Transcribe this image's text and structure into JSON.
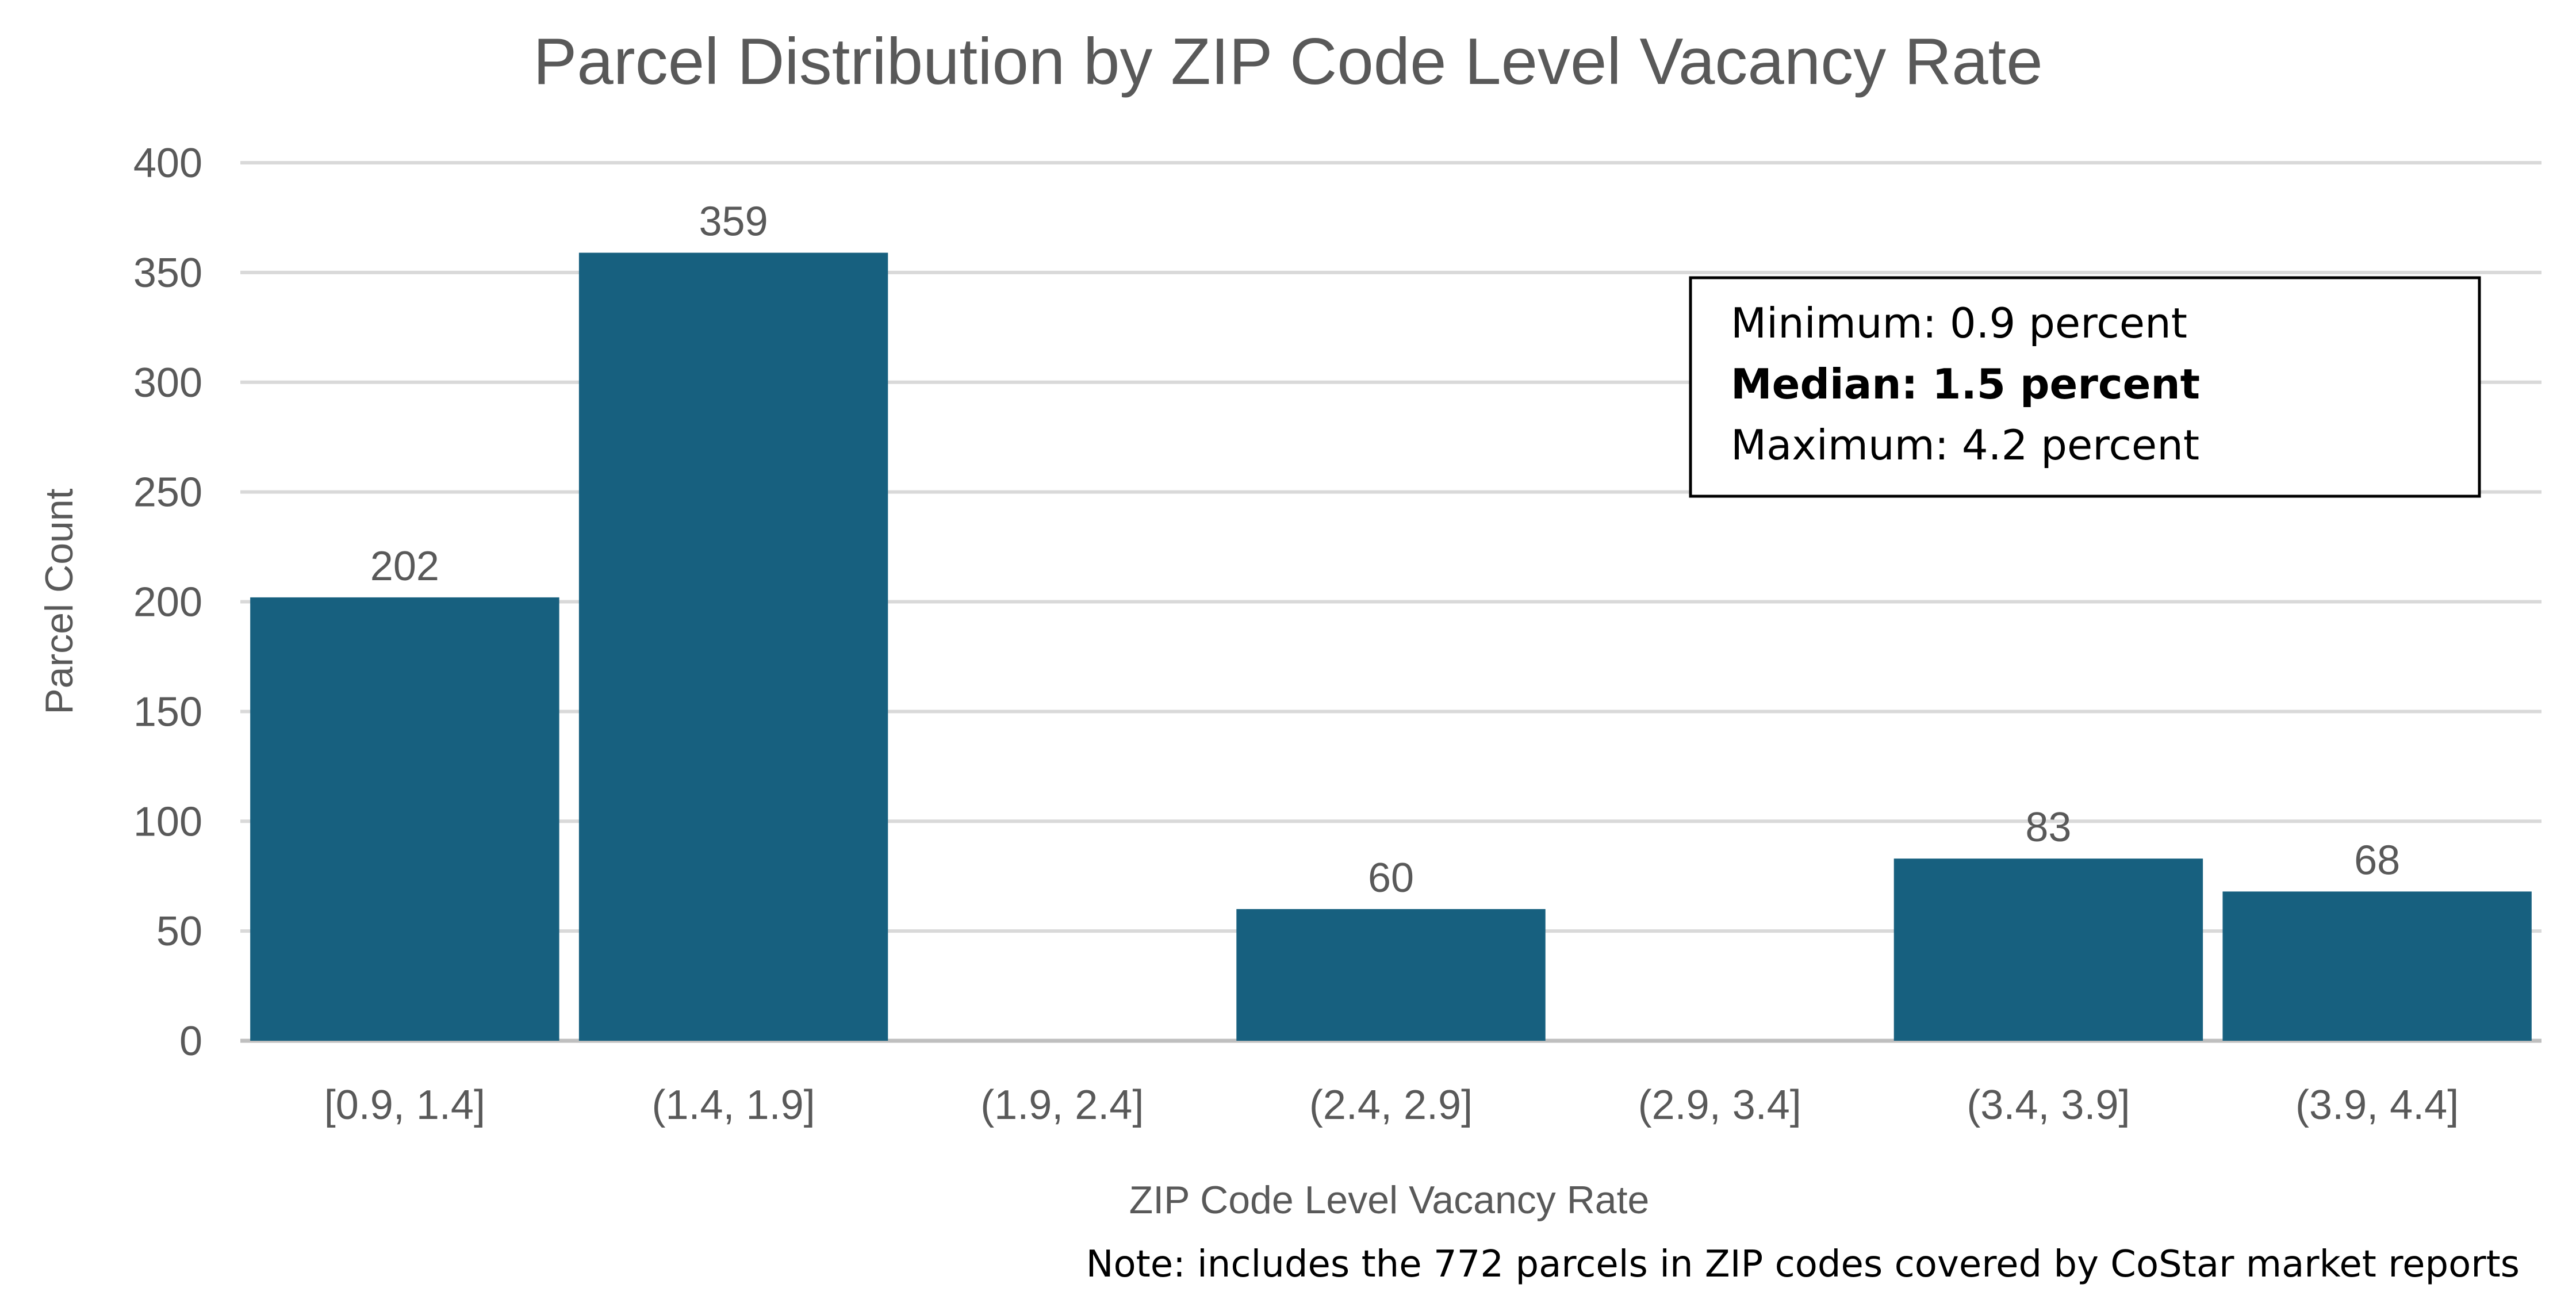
{
  "chart_data": {
    "type": "bar",
    "title": "Parcel Distribution by ZIP Code Level Vacancy Rate",
    "xlabel": "ZIP Code Level Vacancy Rate",
    "ylabel": "Parcel Count",
    "categories": [
      "[0.9, 1.4]",
      "(1.4, 1.9]",
      "(1.9, 2.4]",
      "(2.4, 2.9]",
      "(2.9, 3.4]",
      "(3.4, 3.9]",
      "(3.9, 4.4]"
    ],
    "values": [
      202,
      359,
      0,
      60,
      0,
      83,
      68
    ],
    "data_labels": [
      "202",
      "359",
      "",
      "60",
      "",
      "83",
      "68"
    ],
    "yticks": [
      "0",
      "50",
      "100",
      "150",
      "200",
      "250",
      "300",
      "350",
      "400"
    ],
    "ylim": [
      0,
      400
    ],
    "grid": true,
    "bar_color": "#17607F"
  },
  "stats_box": {
    "minimum": "Minimum: 0.9 percent",
    "median": "Median: 1.5 percent",
    "maximum": "Maximum: 4.2 percent"
  },
  "note": "Note: includes the 772 parcels in ZIP codes covered by CoStar market reports"
}
